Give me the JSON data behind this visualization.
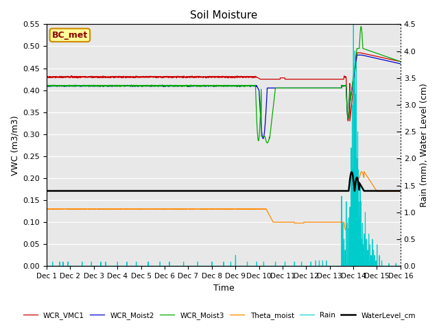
{
  "title": "Soil Moisture",
  "xlabel": "Time",
  "ylabel_left": "VWC (m3/m3)",
  "ylabel_right": "Rain (mm), Water Level (cm)",
  "ylim_left": [
    0.0,
    0.55
  ],
  "ylim_right": [
    0.0,
    4.5
  ],
  "yticks_left": [
    0.0,
    0.05,
    0.1,
    0.15,
    0.2,
    0.25,
    0.3,
    0.35,
    0.4,
    0.45,
    0.5,
    0.55
  ],
  "yticks_right": [
    0.0,
    0.5,
    1.0,
    1.5,
    2.0,
    2.5,
    3.0,
    3.5,
    4.0,
    4.5
  ],
  "xlim": [
    0,
    15
  ],
  "xtick_labels": [
    "Dec 1",
    "Dec 2",
    "Dec 3",
    "Dec 4",
    "Dec 5",
    "Dec 6",
    "Dec 7",
    "Dec 8",
    "Dec 9",
    "Dec 10",
    "Dec 11",
    "Dec 12",
    "Dec 13",
    "Dec 14",
    "Dec 15",
    "Dec 16"
  ],
  "xtick_positions": [
    0,
    1,
    2,
    3,
    4,
    5,
    6,
    7,
    8,
    9,
    10,
    11,
    12,
    13,
    14,
    15
  ],
  "colors": {
    "WCR_VMC1": "#cc0000",
    "WCR_Moist2": "#0000cc",
    "WCR_Moist3": "#00aa00",
    "Theta_moist": "#ff8800",
    "Rain": "#00cccc",
    "WaterLevel_cm": "#000000"
  },
  "bc_met_label": "BC_met",
  "legend_labels": [
    "WCR_VMC1",
    "WCR_Moist2",
    "WCR_Moist3",
    "Theta_moist",
    "Rain",
    "WaterLevel_cm"
  ],
  "plot_bg_color": "#e8e8e8",
  "fig_bg_color": "#ffffff",
  "right_axis_style": "dotted"
}
